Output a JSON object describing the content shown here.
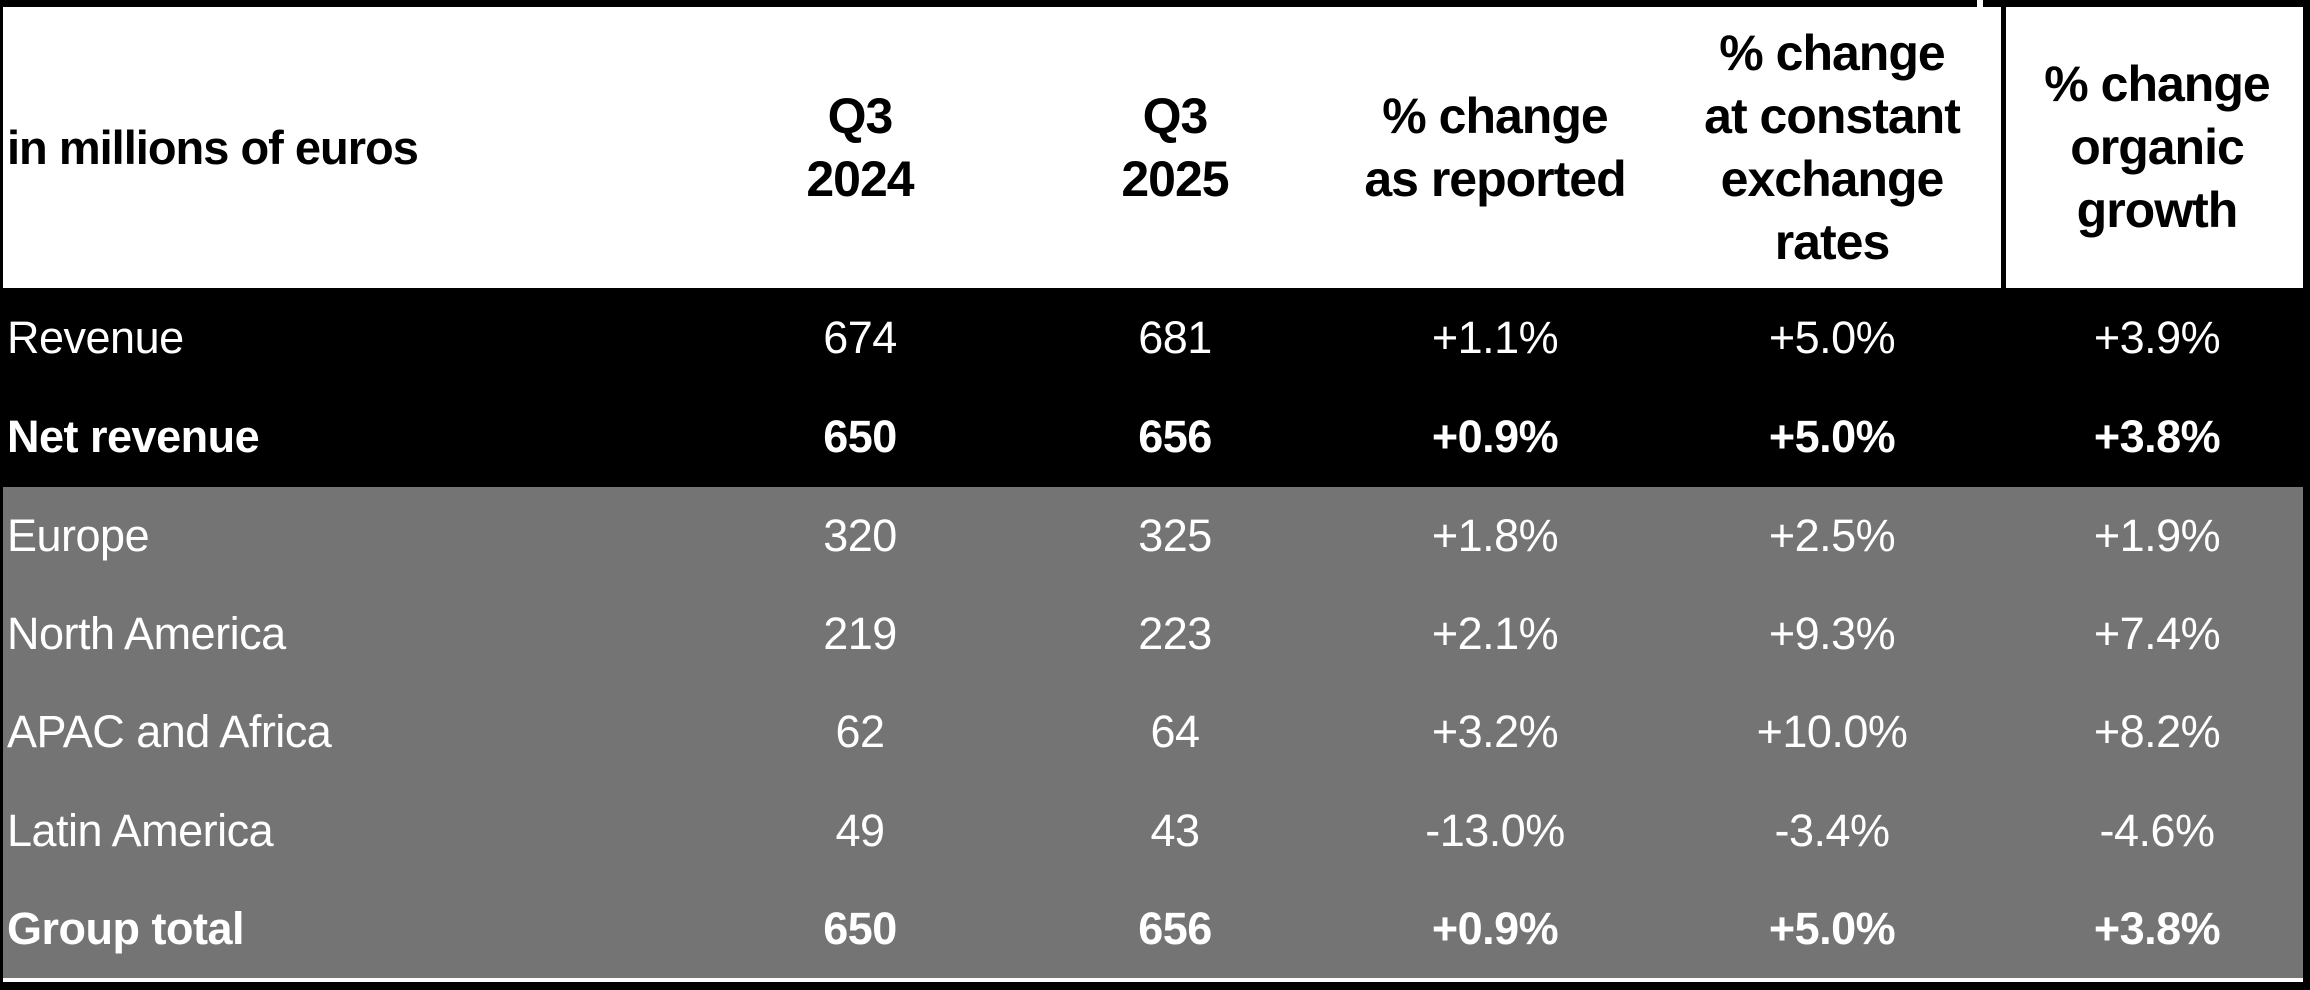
{
  "colors": {
    "frame_and_totals_background": "#000000",
    "regions_background": "#747474",
    "header_background": "#ffffff",
    "header_text": "#000000",
    "row_text": "#ffffff"
  },
  "chart_data": {
    "type": "table",
    "unit_label": "in millions of euros",
    "columns": [
      "Q3\n2024",
      "Q3\n2025",
      "% change\nas reported",
      "% change\nat constant\nexchange\nrates",
      "% change\norganic\ngrowth"
    ],
    "sections": [
      {
        "name": "totals",
        "rows": [
          {
            "label": "Revenue",
            "bold": false,
            "values": [
              "674",
              "681",
              "+1.1%",
              "+5.0%",
              "+3.9%"
            ]
          },
          {
            "label": "Net revenue",
            "bold": true,
            "values": [
              "650",
              "656",
              "+0.9%",
              "+5.0%",
              "+3.8%"
            ]
          }
        ]
      },
      {
        "name": "regions",
        "rows": [
          {
            "label": "Europe",
            "bold": false,
            "values": [
              "320",
              "325",
              "+1.8%",
              "+2.5%",
              "+1.9%"
            ]
          },
          {
            "label": "North America",
            "bold": false,
            "values": [
              "219",
              "223",
              "+2.1%",
              "+9.3%",
              "+7.4%"
            ]
          },
          {
            "label": "APAC and Africa",
            "bold": false,
            "values": [
              "62",
              "64",
              "+3.2%",
              "+10.0%",
              "+8.2%"
            ]
          },
          {
            "label": "Latin America",
            "bold": false,
            "values": [
              "49",
              "43",
              "-13.0%",
              "-3.4%",
              "-4.6%"
            ]
          },
          {
            "label": "Group total",
            "bold": true,
            "values": [
              "650",
              "656",
              "+0.9%",
              "+5.0%",
              "+3.8%"
            ]
          }
        ]
      }
    ]
  }
}
